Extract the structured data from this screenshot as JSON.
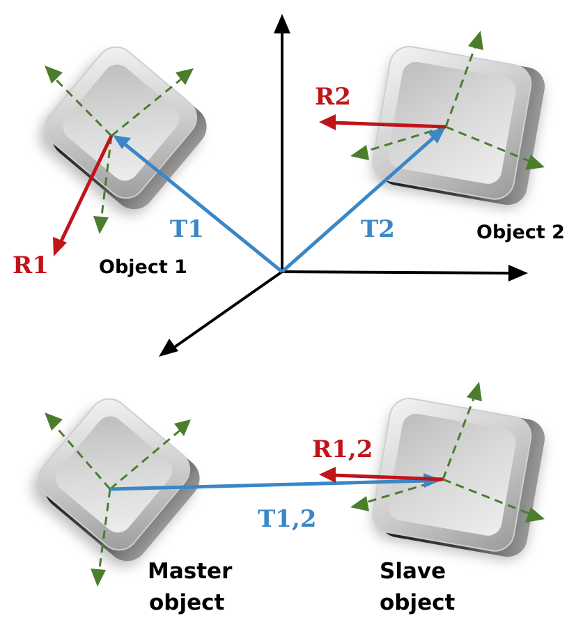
{
  "colors": {
    "blue": "#3a87c8",
    "red": "#c0141b",
    "green": "#4a7d2c",
    "black": "#000000"
  },
  "top": {
    "labels": {
      "r1": "R1",
      "r2": "R2",
      "t1": "T1",
      "t2": "T2",
      "object1": "Object 1",
      "object2": "Object 2"
    }
  },
  "bottom": {
    "labels": {
      "r12": "R1,2",
      "t12": "T1,2",
      "master_line1": "Master",
      "master_line2": "object",
      "slave_line1": "Slave",
      "slave_line2": "object"
    }
  }
}
